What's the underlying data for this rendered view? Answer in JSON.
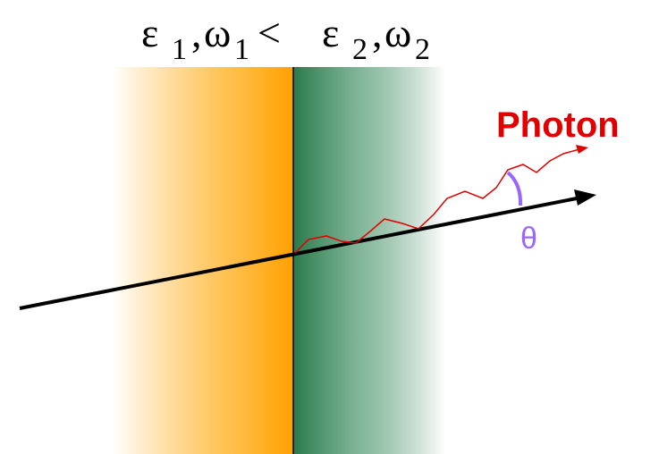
{
  "header": {
    "left": {
      "epsilon": "ε",
      "epsilon_sub": "1",
      "separator": ",",
      "omega": "ω",
      "omega_sub": "1"
    },
    "relation": "<",
    "right": {
      "epsilon": "ε",
      "epsilon_sub": "2",
      "separator": ",",
      "omega": "ω",
      "omega_sub": "2"
    }
  },
  "photon_label": "Photon",
  "angle_label": "θ"
}
